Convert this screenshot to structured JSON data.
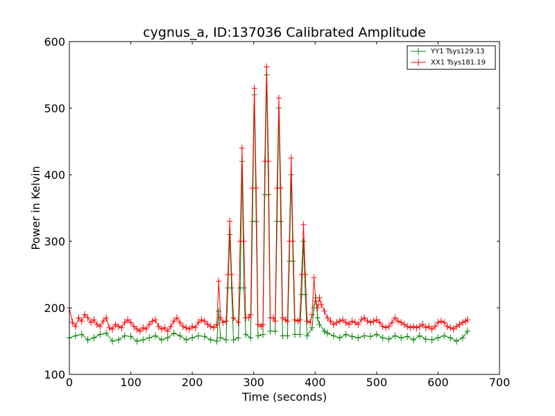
{
  "chart_data": {
    "type": "line",
    "title": "cygnus_a, ID:137036 Calibrated Amplitude",
    "xlabel": "Time (seconds)",
    "ylabel": "Power in Kelvin",
    "xlim": [
      0,
      700
    ],
    "ylim": [
      100,
      600
    ],
    "xticks": [
      0,
      100,
      200,
      300,
      400,
      500,
      600,
      700
    ],
    "yticks": [
      100,
      200,
      300,
      400,
      500,
      600
    ],
    "grid": false,
    "legend_position": "top-right",
    "marker": "+",
    "series": [
      {
        "name": "YY1 Tsys129.13",
        "color": "#008000",
        "points": [
          [
            0,
            155
          ],
          [
            10,
            158
          ],
          [
            20,
            160
          ],
          [
            30,
            152
          ],
          [
            40,
            155
          ],
          [
            50,
            160
          ],
          [
            60,
            162
          ],
          [
            70,
            150
          ],
          [
            80,
            152
          ],
          [
            90,
            158
          ],
          [
            100,
            157
          ],
          [
            110,
            150
          ],
          [
            120,
            152
          ],
          [
            130,
            155
          ],
          [
            140,
            158
          ],
          [
            150,
            152
          ],
          [
            160,
            155
          ],
          [
            170,
            162
          ],
          [
            180,
            158
          ],
          [
            190,
            152
          ],
          [
            200,
            155
          ],
          [
            210,
            158
          ],
          [
            220,
            157
          ],
          [
            230,
            152
          ],
          [
            240,
            150
          ],
          [
            243,
            195
          ],
          [
            246,
            155
          ],
          [
            255,
            152
          ],
          [
            258,
            230
          ],
          [
            261,
            310
          ],
          [
            264,
            230
          ],
          [
            267,
            152
          ],
          [
            275,
            155
          ],
          [
            278,
            230
          ],
          [
            281,
            420
          ],
          [
            284,
            230
          ],
          [
            287,
            160
          ],
          [
            295,
            155
          ],
          [
            298,
            330
          ],
          [
            301,
            520
          ],
          [
            304,
            330
          ],
          [
            307,
            158
          ],
          [
            315,
            160
          ],
          [
            318,
            370
          ],
          [
            321,
            550
          ],
          [
            324,
            370
          ],
          [
            327,
            165
          ],
          [
            335,
            165
          ],
          [
            338,
            330
          ],
          [
            341,
            500
          ],
          [
            344,
            330
          ],
          [
            347,
            158
          ],
          [
            355,
            158
          ],
          [
            358,
            270
          ],
          [
            361,
            400
          ],
          [
            364,
            270
          ],
          [
            367,
            160
          ],
          [
            375,
            160
          ],
          [
            378,
            220
          ],
          [
            381,
            300
          ],
          [
            384,
            220
          ],
          [
            387,
            158
          ],
          [
            395,
            170
          ],
          [
            398,
            200
          ],
          [
            401,
            215
          ],
          [
            404,
            185
          ],
          [
            407,
            175
          ],
          [
            415,
            165
          ],
          [
            420,
            162
          ],
          [
            430,
            158
          ],
          [
            440,
            155
          ],
          [
            450,
            160
          ],
          [
            460,
            157
          ],
          [
            470,
            155
          ],
          [
            480,
            158
          ],
          [
            490,
            157
          ],
          [
            500,
            160
          ],
          [
            510,
            155
          ],
          [
            520,
            153
          ],
          [
            530,
            158
          ],
          [
            540,
            155
          ],
          [
            550,
            157
          ],
          [
            560,
            152
          ],
          [
            570,
            158
          ],
          [
            580,
            153
          ],
          [
            590,
            152
          ],
          [
            600,
            155
          ],
          [
            610,
            158
          ],
          [
            620,
            155
          ],
          [
            630,
            150
          ],
          [
            640,
            155
          ],
          [
            648,
            165
          ]
        ]
      },
      {
        "name": "XX1 Tsys181.19",
        "color": "#ff0000",
        "points": [
          [
            0,
            200
          ],
          [
            5,
            178
          ],
          [
            10,
            172
          ],
          [
            15,
            185
          ],
          [
            20,
            180
          ],
          [
            25,
            190
          ],
          [
            30,
            185
          ],
          [
            35,
            178
          ],
          [
            40,
            182
          ],
          [
            45,
            175
          ],
          [
            50,
            172
          ],
          [
            55,
            180
          ],
          [
            60,
            185
          ],
          [
            65,
            170
          ],
          [
            70,
            168
          ],
          [
            75,
            175
          ],
          [
            80,
            172
          ],
          [
            85,
            170
          ],
          [
            90,
            178
          ],
          [
            95,
            182
          ],
          [
            100,
            178
          ],
          [
            105,
            172
          ],
          [
            110,
            168
          ],
          [
            115,
            165
          ],
          [
            120,
            170
          ],
          [
            125,
            168
          ],
          [
            130,
            175
          ],
          [
            135,
            180
          ],
          [
            140,
            182
          ],
          [
            145,
            172
          ],
          [
            150,
            168
          ],
          [
            155,
            170
          ],
          [
            160,
            165
          ],
          [
            165,
            172
          ],
          [
            170,
            180
          ],
          [
            175,
            185
          ],
          [
            180,
            178
          ],
          [
            185,
            172
          ],
          [
            190,
            170
          ],
          [
            195,
            168
          ],
          [
            200,
            172
          ],
          [
            205,
            170
          ],
          [
            210,
            178
          ],
          [
            215,
            182
          ],
          [
            220,
            180
          ],
          [
            225,
            175
          ],
          [
            230,
            172
          ],
          [
            235,
            170
          ],
          [
            240,
            175
          ],
          [
            243,
            240
          ],
          [
            246,
            185
          ],
          [
            250,
            178
          ],
          [
            255,
            180
          ],
          [
            258,
            250
          ],
          [
            261,
            330
          ],
          [
            264,
            250
          ],
          [
            267,
            185
          ],
          [
            275,
            178
          ],
          [
            278,
            300
          ],
          [
            281,
            440
          ],
          [
            284,
            300
          ],
          [
            287,
            185
          ],
          [
            292,
            185
          ],
          [
            295,
            190
          ],
          [
            298,
            380
          ],
          [
            301,
            530
          ],
          [
            304,
            380
          ],
          [
            307,
            175
          ],
          [
            312,
            172
          ],
          [
            315,
            175
          ],
          [
            318,
            420
          ],
          [
            321,
            562
          ],
          [
            324,
            420
          ],
          [
            327,
            185
          ],
          [
            332,
            185
          ],
          [
            335,
            180
          ],
          [
            338,
            380
          ],
          [
            341,
            515
          ],
          [
            344,
            380
          ],
          [
            347,
            185
          ],
          [
            352,
            182
          ],
          [
            355,
            180
          ],
          [
            358,
            300
          ],
          [
            361,
            425
          ],
          [
            364,
            300
          ],
          [
            367,
            182
          ],
          [
            372,
            180
          ],
          [
            375,
            182
          ],
          [
            378,
            250
          ],
          [
            381,
            325
          ],
          [
            384,
            250
          ],
          [
            387,
            180
          ],
          [
            392,
            178
          ],
          [
            395,
            190
          ],
          [
            398,
            245
          ],
          [
            401,
            210
          ],
          [
            404,
            200
          ],
          [
            407,
            215
          ],
          [
            410,
            205
          ],
          [
            415,
            195
          ],
          [
            420,
            185
          ],
          [
            425,
            180
          ],
          [
            430,
            175
          ],
          [
            435,
            178
          ],
          [
            440,
            180
          ],
          [
            445,
            182
          ],
          [
            450,
            178
          ],
          [
            455,
            175
          ],
          [
            460,
            180
          ],
          [
            465,
            178
          ],
          [
            470,
            175
          ],
          [
            475,
            182
          ],
          [
            480,
            185
          ],
          [
            485,
            180
          ],
          [
            490,
            178
          ],
          [
            495,
            180
          ],
          [
            500,
            182
          ],
          [
            505,
            178
          ],
          [
            510,
            172
          ],
          [
            515,
            170
          ],
          [
            520,
            172
          ],
          [
            525,
            178
          ],
          [
            530,
            185
          ],
          [
            535,
            180
          ],
          [
            540,
            178
          ],
          [
            545,
            175
          ],
          [
            550,
            172
          ],
          [
            555,
            170
          ],
          [
            560,
            172
          ],
          [
            565,
            170
          ],
          [
            570,
            172
          ],
          [
            575,
            175
          ],
          [
            580,
            170
          ],
          [
            585,
            172
          ],
          [
            590,
            168
          ],
          [
            595,
            172
          ],
          [
            600,
            178
          ],
          [
            605,
            180
          ],
          [
            610,
            178
          ],
          [
            615,
            172
          ],
          [
            620,
            170
          ],
          [
            625,
            168
          ],
          [
            630,
            172
          ],
          [
            635,
            175
          ],
          [
            640,
            178
          ],
          [
            645,
            180
          ],
          [
            648,
            182
          ]
        ]
      }
    ]
  }
}
